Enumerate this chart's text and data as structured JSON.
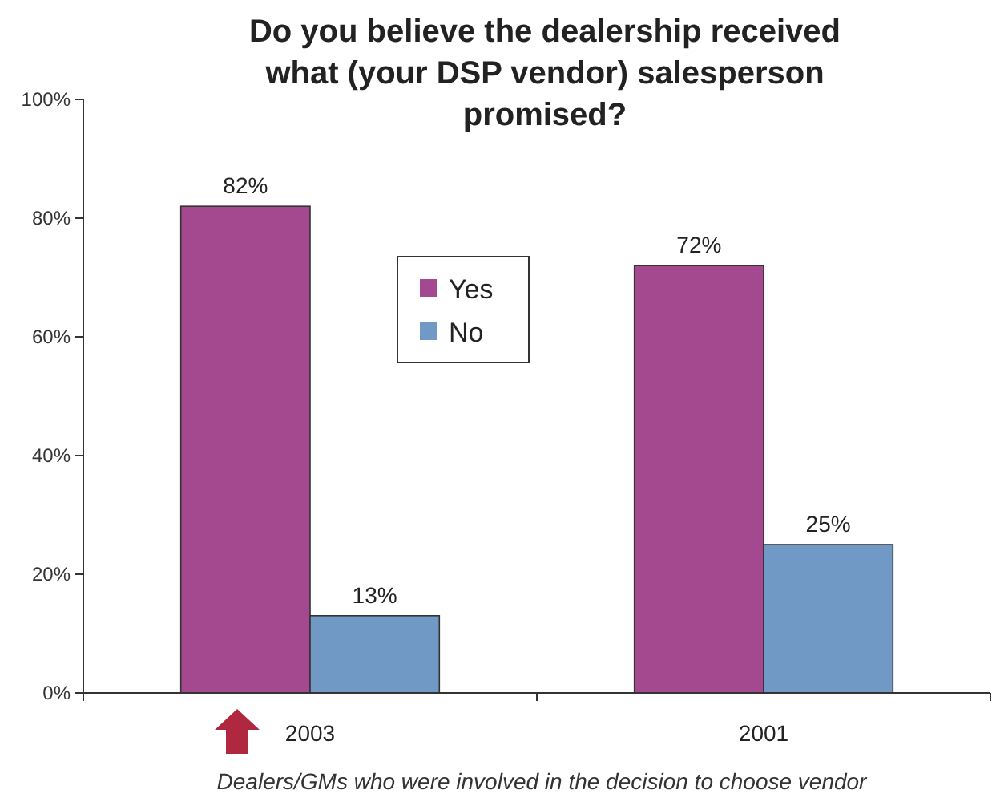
{
  "chart_data": {
    "type": "bar",
    "title": "Do you believe the dealership received what (your DSP vendor) salesperson promised?",
    "categories": [
      "2003",
      "2001"
    ],
    "series": [
      {
        "name": "Yes",
        "color": "#a4488f",
        "values": [
          82,
          72
        ],
        "value_labels": [
          "82%",
          "72%"
        ]
      },
      {
        "name": "No",
        "color": "#7199c6",
        "values": [
          13,
          25
        ],
        "value_labels": [
          "13%",
          "25%"
        ]
      }
    ],
    "ylim": [
      0,
      100
    ],
    "yticks": [
      {
        "value": 0,
        "label": "0%"
      },
      {
        "value": 20,
        "label": "20%"
      },
      {
        "value": 40,
        "label": "40%"
      },
      {
        "value": 60,
        "label": "60%"
      },
      {
        "value": 80,
        "label": "80%"
      },
      {
        "value": 100,
        "label": "100%"
      }
    ],
    "grid": false,
    "legend": "top",
    "annotations": [
      "Dealers/GMs who were involved in the decision to choose vendor"
    ]
  }
}
